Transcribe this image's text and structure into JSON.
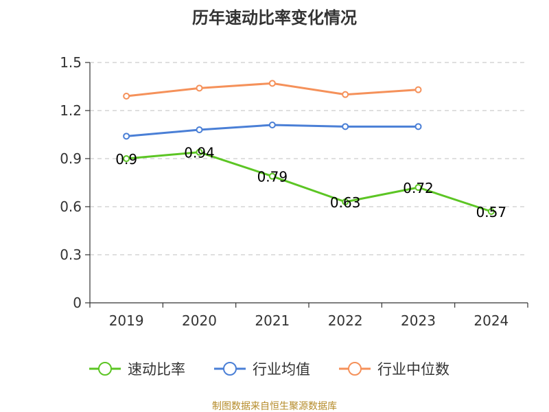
{
  "chart_data": {
    "type": "line",
    "title": "历年速动比率变化情况",
    "x": [
      "2019",
      "2020",
      "2021",
      "2022",
      "2023",
      "2024"
    ],
    "yticks": [
      "0",
      "0.3",
      "0.6",
      "0.9",
      "1.2",
      "1.5"
    ],
    "ylim": [
      0,
      1.5
    ],
    "grid": true,
    "legend_position": "bottom",
    "series": [
      {
        "name": "速动比率",
        "color": "#5cc524",
        "values": [
          0.9,
          0.94,
          0.79,
          0.63,
          0.72,
          0.57
        ],
        "labels": [
          "0.9",
          "0.94",
          "0.79",
          "0.63",
          "0.72",
          "0.57"
        ]
      },
      {
        "name": "行业均值",
        "color": "#4a7fd6",
        "values": [
          1.04,
          1.08,
          1.11,
          1.1,
          1.1,
          null
        ]
      },
      {
        "name": "行业中位数",
        "color": "#f5915a",
        "values": [
          1.29,
          1.34,
          1.37,
          1.3,
          1.33,
          null
        ]
      }
    ]
  },
  "footer": {
    "source": "制图数据来自恒生聚源数据库"
  }
}
